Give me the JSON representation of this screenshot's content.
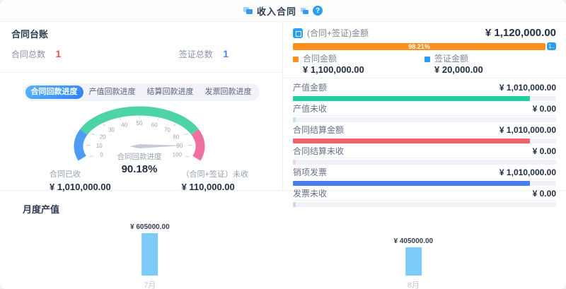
{
  "header": {
    "title": "收入合同"
  },
  "ledger": {
    "title": "合同台账",
    "stats": [
      {
        "label": "合同总数",
        "value": "1",
        "color": "#f4494e"
      },
      {
        "label": "签证总数",
        "value": "1",
        "color": "#3c86f5"
      }
    ]
  },
  "tabs": [
    "合同回款进度",
    "产值回款进度",
    "结算回款进度",
    "发票回款进度"
  ],
  "gauge_footer": {
    "left": {
      "label": "合同已收",
      "amount": "¥ 1,010,000.00"
    },
    "right": {
      "label": "（合同+签证）未收",
      "amount": "¥ 110,000.00"
    }
  },
  "summary": {
    "label": "(合同+签证)金额",
    "amount": "¥ 1,120,000.00",
    "bar": {
      "main_pct": 98.21,
      "main_text": "98.21%",
      "rest_pct": 1.79,
      "rest_text": "1..",
      "main_color": "#ff8f1f",
      "rest_color": "#2f9cf4"
    },
    "legend": [
      {
        "label": "合同金额",
        "amount": "¥ 1,100,000.00",
        "color": "#ff8f1f"
      },
      {
        "label": "签证金额",
        "amount": "¥ 20,000.00",
        "color": "#2f9cf4"
      }
    ]
  },
  "metrics": [
    {
      "label": "产值金额",
      "amount": "¥ 1,010,000.00",
      "pct": 90.18,
      "color": "#1ed0a4"
    },
    {
      "label": "产值未收",
      "amount": "¥ 0.00",
      "pct": 1.2,
      "color": "#bfe4f7"
    },
    {
      "label": "合同结算金额",
      "amount": "¥ 1,010,000.00",
      "pct": 90.18,
      "color": "#f4606c"
    },
    {
      "label": "合同结算未收",
      "amount": "¥ 0.00",
      "pct": 1.2,
      "color": "#f8d4d9"
    },
    {
      "label": "销项发票",
      "amount": "¥ 1,010,000.00",
      "pct": 90.18,
      "color": "#4a7df0"
    },
    {
      "label": "发票未收",
      "amount": "¥ 0.00",
      "pct": 1.2,
      "color": "#c5d9f7"
    }
  ],
  "monthly": {
    "title": "月度产值"
  },
  "chart_data": [
    {
      "type": "gauge",
      "title": "合同回款进度",
      "value": 90.18,
      "value_text": "90.18%",
      "min": 0,
      "max": 100,
      "tick_step": 10,
      "start_angle": 200,
      "end_angle": -20,
      "needle_color": "#c5cbd5",
      "segments": [
        {
          "from": 0,
          "to": 20,
          "color": "#4c9cf6"
        },
        {
          "from": 20,
          "to": 80,
          "color": "#4ed3a6"
        },
        {
          "from": 80,
          "to": 100,
          "color": "#ef6f9f"
        }
      ]
    },
    {
      "type": "bar",
      "title": "月度产值",
      "categories": [
        "7月",
        "8月"
      ],
      "values": [
        605000,
        405000
      ],
      "value_labels": [
        "¥ 605000.00",
        "¥ 405000.00"
      ],
      "bar_color": "#7dcbf8",
      "ylim": [
        0,
        700000
      ],
      "grid": false,
      "x_centers_pct": [
        25.5,
        74
      ]
    }
  ]
}
